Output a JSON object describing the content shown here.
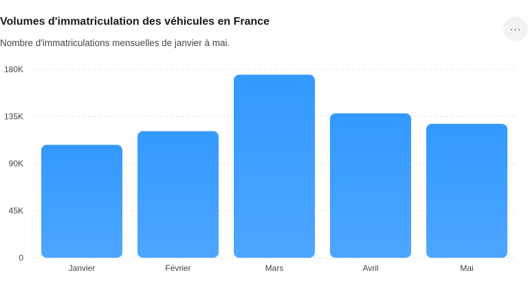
{
  "header": {
    "title": "Volumes d'immatriculation des véhicules en France",
    "subtitle": "Nombre d'immatriculations mensuelles de janvier à mai.",
    "more_label": "···"
  },
  "colors": {
    "bar_top": "#3399ff",
    "bar_bottom": "#4da6ff",
    "grid": "#e6e6e6"
  },
  "chart_data": {
    "type": "bar",
    "title": "Volumes d'immatriculation des véhicules en France",
    "subtitle": "Nombre d'immatriculations mensuelles de janvier à mai.",
    "categories": [
      "Janvier",
      "Février",
      "Mars",
      "Avril",
      "Mai"
    ],
    "values": [
      108000,
      121000,
      175000,
      138000,
      128000
    ],
    "ylim": [
      0,
      180000
    ],
    "yticks": [
      0,
      45000,
      90000,
      135000,
      180000
    ],
    "ytick_labels": [
      "0",
      "45K",
      "90K",
      "135K",
      "180K"
    ],
    "grid": true,
    "xlabel": "",
    "ylabel": ""
  }
}
